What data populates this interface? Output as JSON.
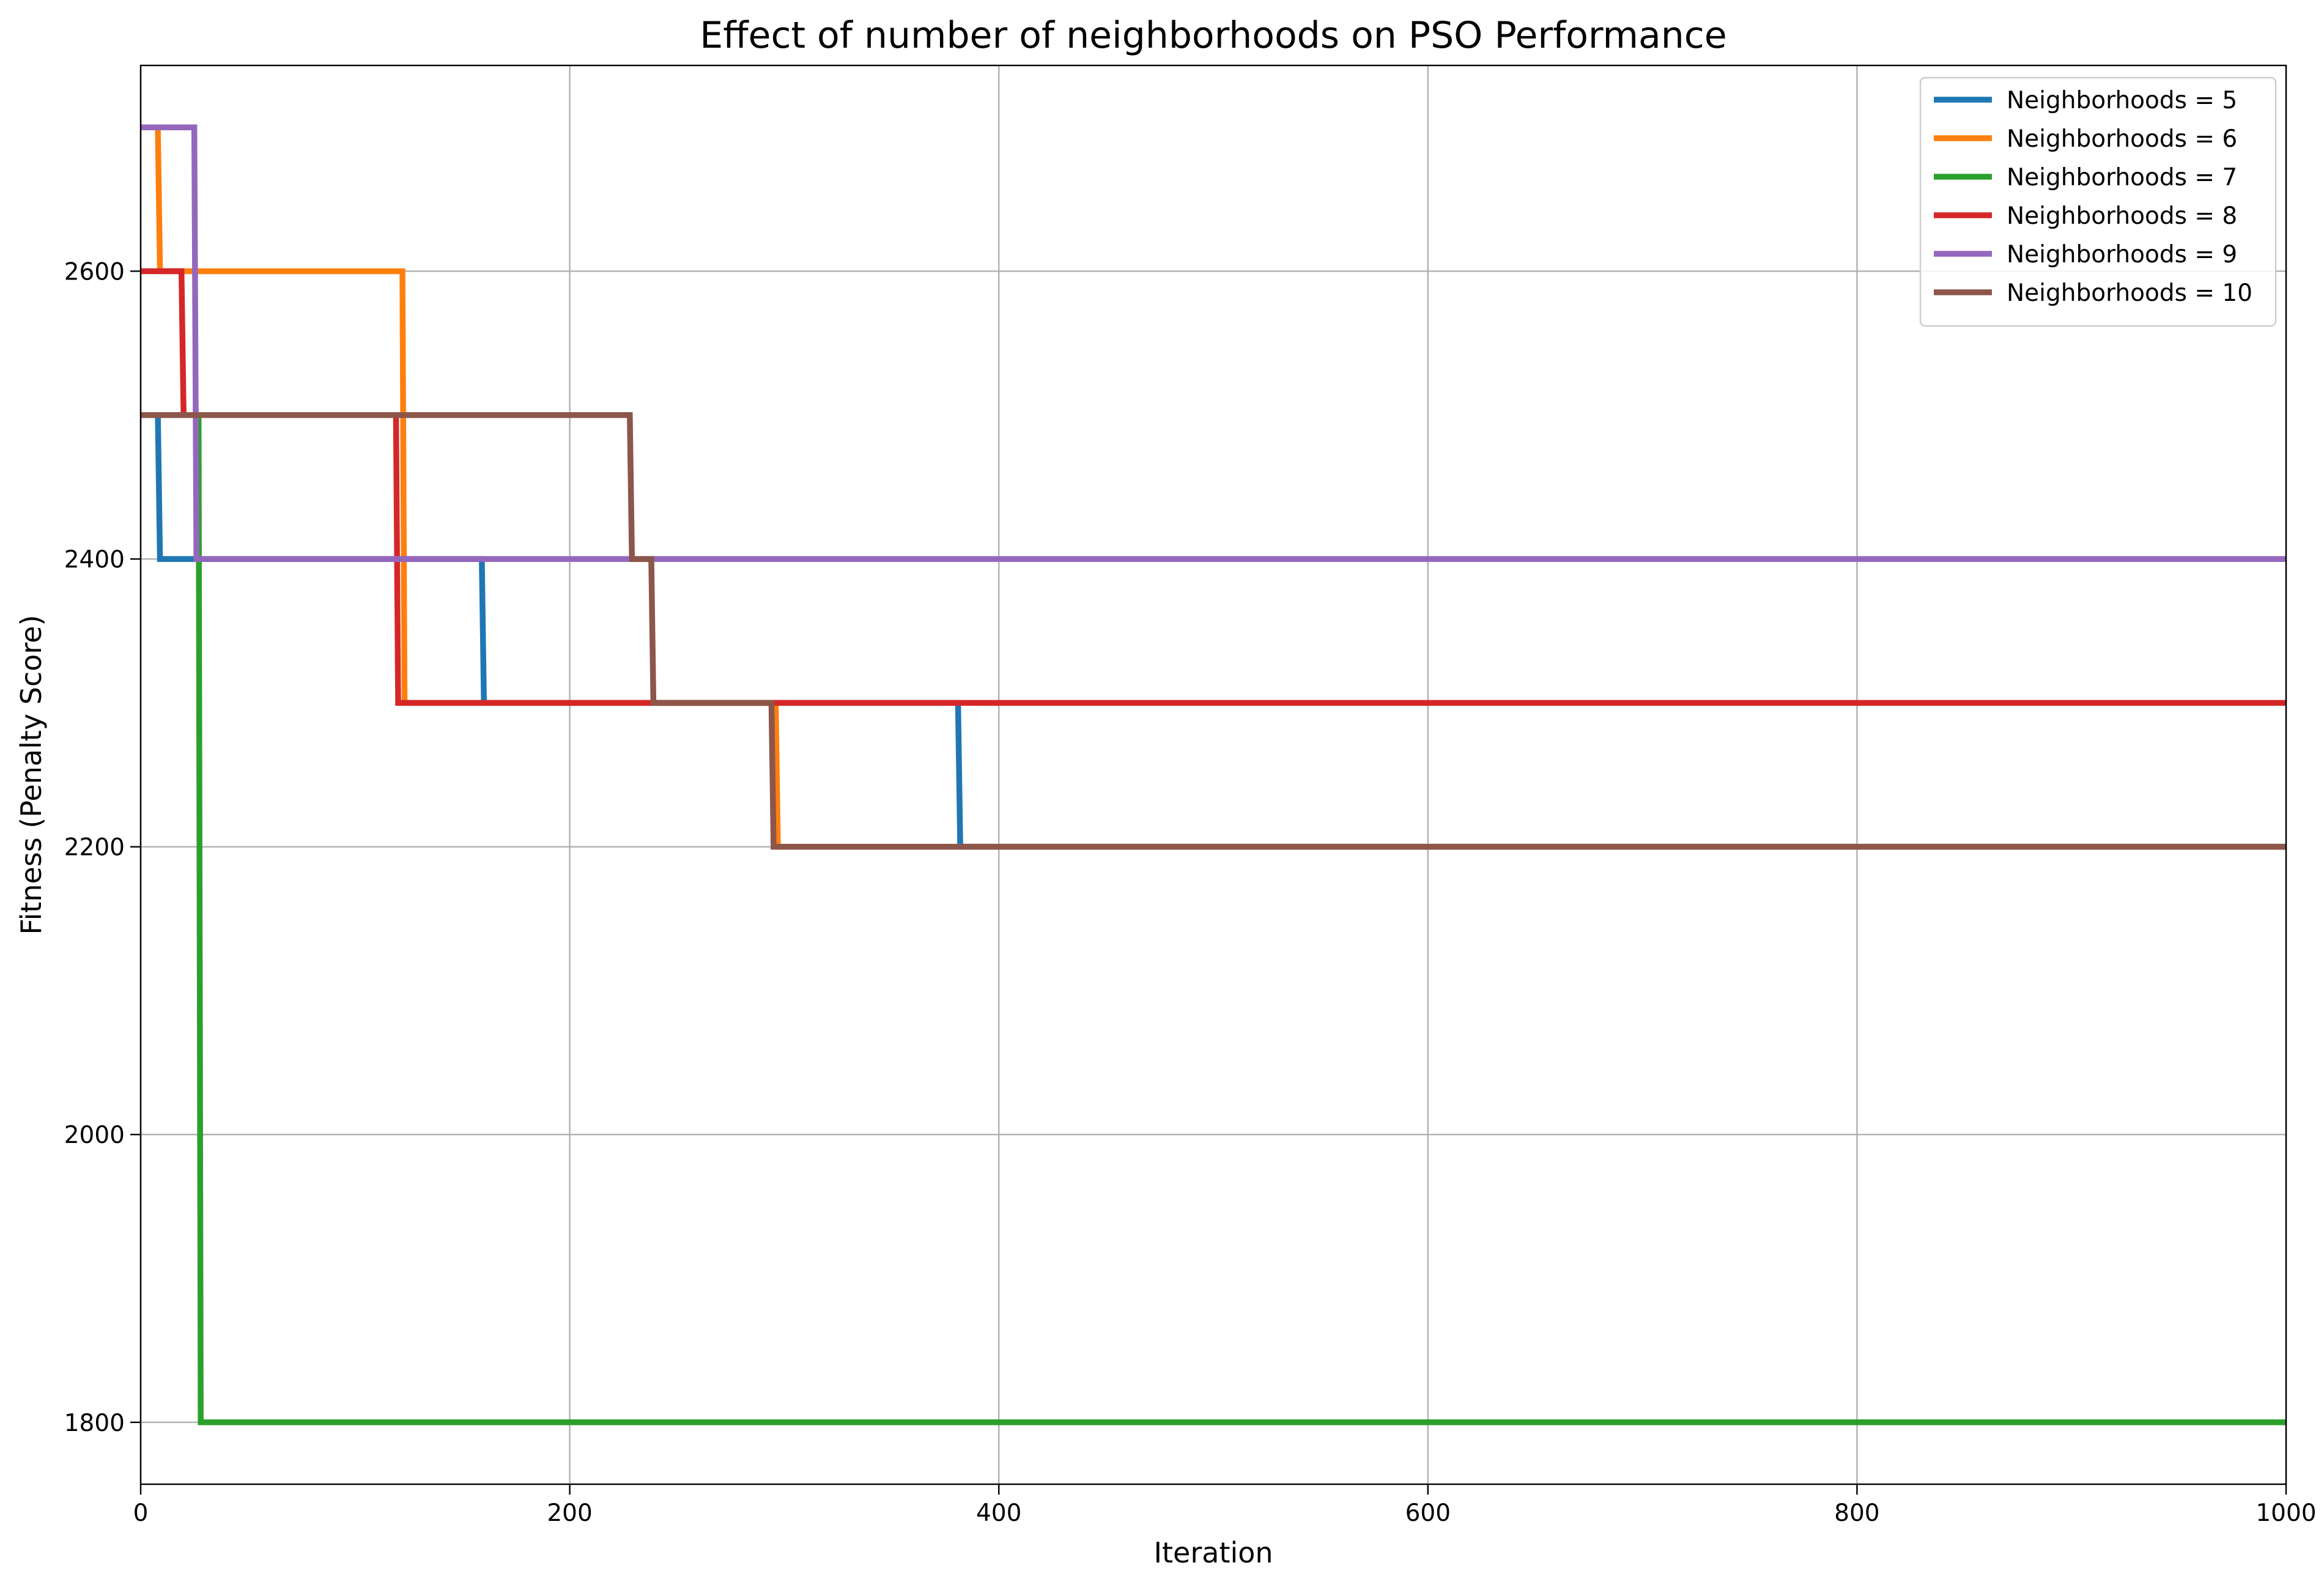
{
  "chart_data": {
    "type": "line",
    "title": "Effect of number of neighborhoods on PSO Performance",
    "xlabel": "Iteration",
    "ylabel": "Fitness (Penalty Score)",
    "xlim": [
      0,
      1000
    ],
    "ylim": [
      1757,
      2743
    ],
    "x_ticks": [
      0,
      200,
      400,
      600,
      800,
      1000
    ],
    "y_ticks": [
      1800,
      2000,
      2200,
      2400,
      2600
    ],
    "grid": true,
    "legend_position": "top-right",
    "step": true,
    "series": [
      {
        "name": "Neighborhoods = 5",
        "color": "#1f77b4",
        "points": [
          [
            0,
            2500
          ],
          [
            8,
            2500
          ],
          [
            9,
            2400
          ],
          [
            159,
            2400
          ],
          [
            160,
            2300
          ],
          [
            381,
            2300
          ],
          [
            382,
            2200
          ],
          [
            1000,
            2200
          ]
        ]
      },
      {
        "name": "Neighborhoods = 6",
        "color": "#ff7f0e",
        "points": [
          [
            0,
            2700
          ],
          [
            8,
            2700
          ],
          [
            9,
            2600
          ],
          [
            122,
            2600
          ],
          [
            123,
            2300
          ],
          [
            296,
            2300
          ],
          [
            297,
            2200
          ],
          [
            1000,
            2200
          ]
        ]
      },
      {
        "name": "Neighborhoods = 7",
        "color": "#2ca02c",
        "points": [
          [
            0,
            2500
          ],
          [
            27,
            2500
          ],
          [
            28,
            1800
          ],
          [
            1000,
            1800
          ]
        ]
      },
      {
        "name": "Neighborhoods = 8",
        "color": "#d62728",
        "points": [
          [
            0,
            2600
          ],
          [
            19,
            2600
          ],
          [
            20,
            2500
          ],
          [
            119,
            2500
          ],
          [
            120,
            2300
          ],
          [
            1000,
            2300
          ]
        ]
      },
      {
        "name": "Neighborhoods = 9",
        "color": "#9467bd",
        "points": [
          [
            0,
            2700
          ],
          [
            25,
            2700
          ],
          [
            26,
            2400
          ],
          [
            1000,
            2400
          ]
        ]
      },
      {
        "name": "Neighborhoods = 10",
        "color": "#8c564b",
        "points": [
          [
            0,
            2500
          ],
          [
            228,
            2500
          ],
          [
            229,
            2400
          ],
          [
            238,
            2400
          ],
          [
            239,
            2300
          ],
          [
            294,
            2300
          ],
          [
            295,
            2200
          ],
          [
            1000,
            2200
          ]
        ]
      }
    ]
  }
}
